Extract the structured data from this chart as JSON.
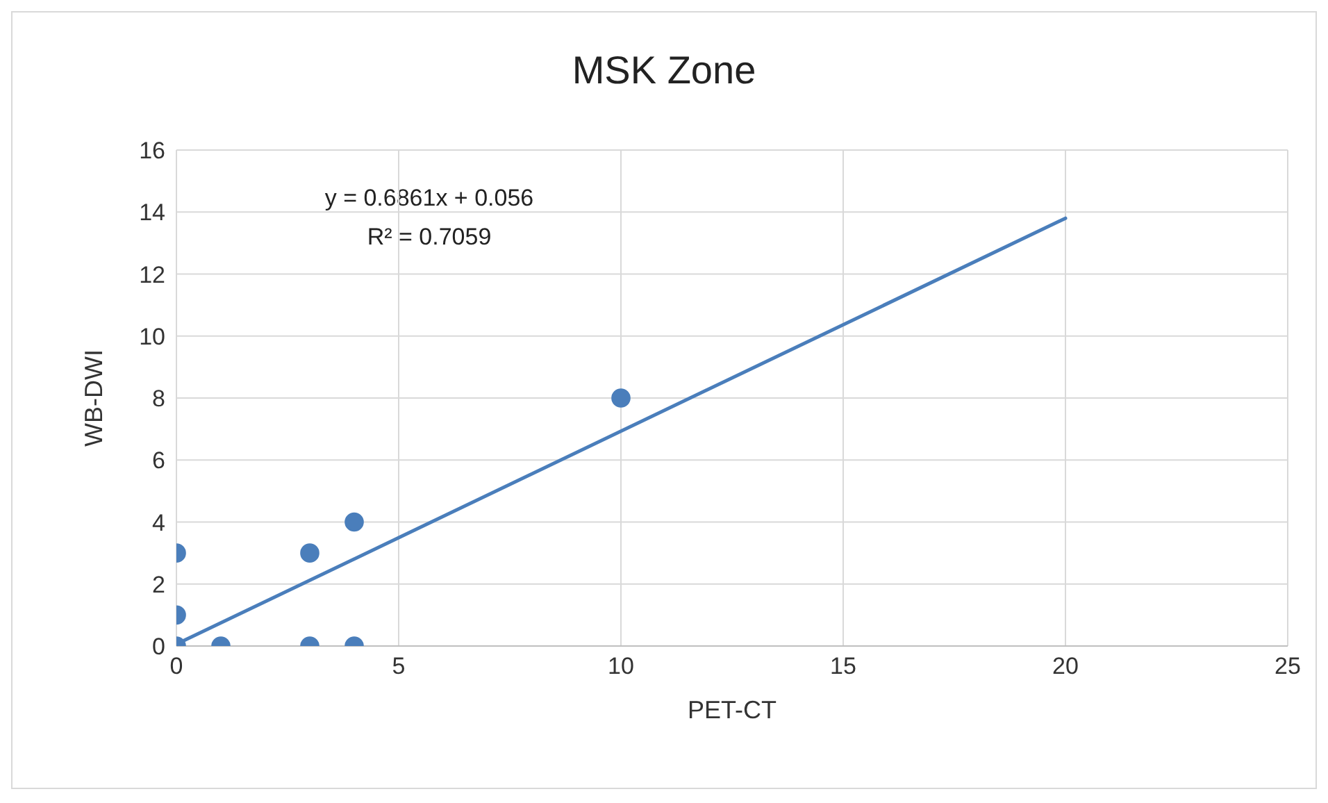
{
  "chart_data": {
    "type": "scatter",
    "title": "MSK Zone",
    "xlabel": "PET-CT",
    "ylabel": "WB-DWI",
    "annotations": [
      "y = 0.6861x + 0.056",
      "R² = 0.7059"
    ],
    "series": [
      {
        "color": "#4a7ebb",
        "marker": "circle",
        "x": [
          0,
          0,
          0,
          1,
          3,
          3,
          4,
          4,
          10
        ],
        "values": [
          0,
          1,
          3,
          0,
          0,
          3,
          0,
          4,
          8
        ]
      },
      {
        "type": "line",
        "color": "#4a7ebb",
        "marker": "none",
        "x": [
          0,
          20
        ],
        "values": [
          0.06,
          13.8
        ]
      }
    ],
    "xlim": [
      0,
      25
    ],
    "xticks": [
      0,
      5,
      10,
      15,
      20,
      25
    ],
    "ylim": [
      0,
      16
    ],
    "yticks": [
      0,
      2,
      4,
      6,
      8,
      10,
      12,
      14,
      16
    ],
    "grid": true
  }
}
